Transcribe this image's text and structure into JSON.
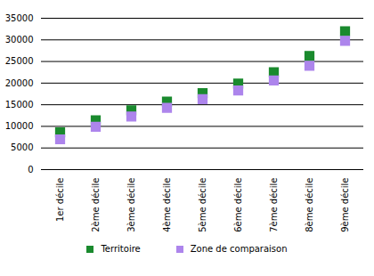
{
  "chart_data": {
    "type": "scatter",
    "marker": "square",
    "categories": [
      "1er décile",
      "2ème décile",
      "3ème décile",
      "4ème décile",
      "5ème décile",
      "6ème décile",
      "7ème décile",
      "8ème décile",
      "9ème décile"
    ],
    "series": [
      {
        "name": "Territoire",
        "color": "#1a8a2e",
        "values": [
          8600,
          11400,
          13700,
          15700,
          17700,
          19900,
          22500,
          26300,
          32000
        ]
      },
      {
        "name": "Zone de comparaison",
        "color": "#ad85ec",
        "values": [
          7000,
          9900,
          12300,
          14300,
          16300,
          18300,
          20600,
          24000,
          29800
        ]
      }
    ],
    "ylim": [
      0,
      35000
    ],
    "yticks": [
      0,
      5000,
      10000,
      15000,
      20000,
      25000,
      30000,
      35000
    ],
    "grid": true,
    "legend": "bottom"
  }
}
